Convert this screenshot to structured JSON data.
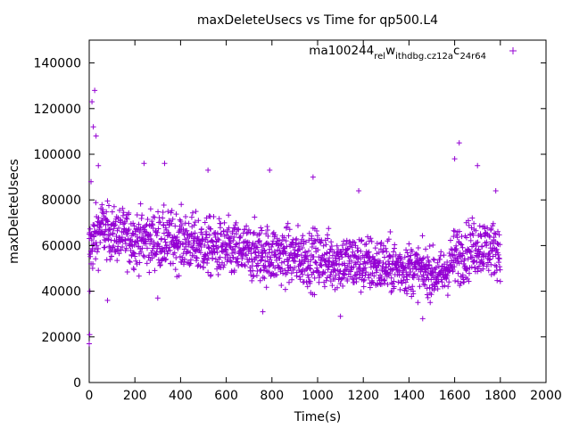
{
  "chart_data": {
    "type": "scatter",
    "title": "maxDeleteUsecs vs Time for qp500.L4",
    "xlabel": "Time(s)",
    "ylabel": "maxDeleteUsecs",
    "xlim": [
      0,
      2000
    ],
    "ylim": [
      0,
      150000
    ],
    "xticks": [
      0,
      200,
      400,
      600,
      800,
      1000,
      1200,
      1400,
      1600,
      1800,
      2000
    ],
    "yticks": [
      0,
      20000,
      40000,
      60000,
      80000,
      100000,
      120000,
      140000
    ],
    "grid": false,
    "legend_position": "top-right",
    "marker": "+",
    "color": "#9400d3",
    "series": [
      {
        "name": "ma100244_rel_withdbg.cz12a_c24r64",
        "name_parts": [
          "ma100244",
          "rel",
          "w",
          "ithdbg.cz12a",
          "c",
          "24r64"
        ],
        "sample_interval_s": 1,
        "time_range_s": [
          0,
          1800
        ],
        "notable_points": [
          {
            "x": 0,
            "y": 17000
          },
          {
            "x": 2,
            "y": 21000
          },
          {
            "x": 3,
            "y": 40000
          },
          {
            "x": 8,
            "y": 88000
          },
          {
            "x": 12,
            "y": 123000
          },
          {
            "x": 18,
            "y": 112000
          },
          {
            "x": 24,
            "y": 128000
          },
          {
            "x": 30,
            "y": 108000
          },
          {
            "x": 40,
            "y": 95000
          },
          {
            "x": 80,
            "y": 36000
          },
          {
            "x": 240,
            "y": 96000
          },
          {
            "x": 300,
            "y": 37000
          },
          {
            "x": 330,
            "y": 96000
          },
          {
            "x": 520,
            "y": 93000
          },
          {
            "x": 760,
            "y": 31000
          },
          {
            "x": 790,
            "y": 93000
          },
          {
            "x": 980,
            "y": 90000
          },
          {
            "x": 1100,
            "y": 29000
          },
          {
            "x": 1180,
            "y": 84000
          },
          {
            "x": 1460,
            "y": 28000
          },
          {
            "x": 1600,
            "y": 98000
          },
          {
            "x": 1620,
            "y": 105000
          },
          {
            "x": 1700,
            "y": 95000
          },
          {
            "x": 1780,
            "y": 84000
          }
        ],
        "trend": [
          {
            "x": 0,
            "y_center": 58000,
            "spread": 10000
          },
          {
            "x": 50,
            "y_center": 68000,
            "spread": 9000
          },
          {
            "x": 100,
            "y_center": 65000,
            "spread": 8000
          },
          {
            "x": 200,
            "y_center": 63000,
            "spread": 9000
          },
          {
            "x": 400,
            "y_center": 62000,
            "spread": 9000
          },
          {
            "x": 600,
            "y_center": 58000,
            "spread": 9000
          },
          {
            "x": 800,
            "y_center": 56000,
            "spread": 9000
          },
          {
            "x": 1000,
            "y_center": 54000,
            "spread": 9000
          },
          {
            "x": 1200,
            "y_center": 52000,
            "spread": 9000
          },
          {
            "x": 1400,
            "y_center": 50000,
            "spread": 8000
          },
          {
            "x": 1550,
            "y_center": 47000,
            "spread": 7000
          },
          {
            "x": 1600,
            "y_center": 55000,
            "spread": 9000
          },
          {
            "x": 1700,
            "y_center": 60000,
            "spread": 9000
          },
          {
            "x": 1800,
            "y_center": 58000,
            "spread": 8000
          }
        ]
      }
    ]
  }
}
